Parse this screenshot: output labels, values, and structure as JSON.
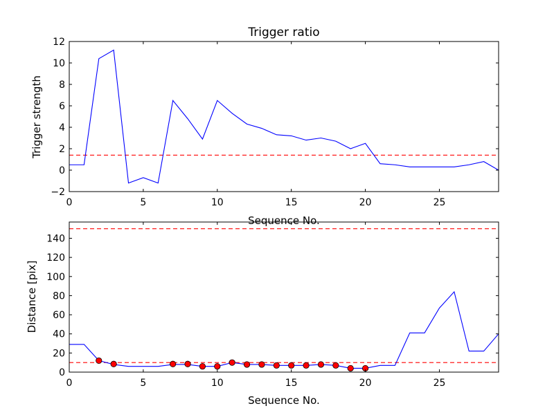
{
  "chart_data": [
    {
      "type": "line",
      "title": "Trigger ratio",
      "xlabel": "Sequence No.",
      "ylabel": "Trigger strength",
      "xlim": [
        0,
        29
      ],
      "ylim": [
        -2,
        12
      ],
      "xticks": [
        0,
        5,
        10,
        15,
        20,
        25
      ],
      "yticks": [
        -2,
        0,
        2,
        4,
        6,
        8,
        10,
        12
      ],
      "grid": false,
      "series": [
        {
          "color": "#0000ff",
          "style": "solid",
          "x": [
            0,
            1,
            2,
            3,
            4,
            5,
            6,
            7,
            8,
            9,
            10,
            11,
            12,
            13,
            14,
            15,
            16,
            17,
            18,
            19,
            20,
            21,
            22,
            23,
            24,
            25,
            26,
            27,
            28,
            29
          ],
          "y": [
            0.5,
            0.5,
            10.4,
            11.2,
            -1.2,
            -0.7,
            -1.2,
            6.5,
            4.8,
            2.9,
            6.5,
            5.3,
            4.3,
            3.9,
            3.3,
            3.2,
            2.8,
            3.0,
            2.7,
            2.0,
            2.5,
            0.6,
            0.5,
            0.3,
            0.3,
            0.3,
            0.3,
            0.5,
            0.8,
            0.0
          ]
        }
      ],
      "hlines": [
        {
          "y": 1.4,
          "color": "#ff0000",
          "style": "dashed"
        }
      ]
    },
    {
      "type": "line",
      "title": "",
      "xlabel": "Sequence No.",
      "ylabel": "Distance [pix]",
      "xlim": [
        0,
        29
      ],
      "ylim": [
        0,
        157
      ],
      "xticks": [
        0,
        5,
        10,
        15,
        20,
        25
      ],
      "yticks": [
        0,
        20,
        40,
        60,
        80,
        100,
        120,
        140
      ],
      "grid": false,
      "series": [
        {
          "color": "#0000ff",
          "style": "solid",
          "x": [
            0,
            1,
            2,
            3,
            4,
            5,
            6,
            7,
            8,
            9,
            10,
            11,
            12,
            13,
            14,
            15,
            16,
            17,
            18,
            19,
            20,
            21,
            22,
            23,
            24,
            25,
            26,
            27,
            28,
            29
          ],
          "y": [
            29,
            29,
            12,
            8,
            6,
            6,
            6,
            8,
            8,
            6,
            6,
            10,
            8,
            8,
            7,
            7,
            7,
            8,
            7,
            4,
            4,
            7,
            7,
            41,
            41,
            67,
            84,
            22,
            22,
            40
          ]
        },
        {
          "type": "scatter",
          "color": "#ff0000",
          "x": [
            2,
            3,
            7,
            8,
            9,
            10,
            11,
            12,
            13,
            14,
            15,
            16,
            17,
            18,
            19,
            20
          ],
          "y": [
            12,
            8.5,
            8.5,
            8.5,
            6,
            6,
            10,
            8,
            8,
            7,
            7,
            7,
            8,
            7,
            4,
            4
          ]
        }
      ],
      "hlines": [
        {
          "y": 10,
          "color": "#ff0000",
          "style": "dashed"
        },
        {
          "y": 150,
          "color": "#ff0000",
          "style": "dashed"
        }
      ]
    }
  ]
}
